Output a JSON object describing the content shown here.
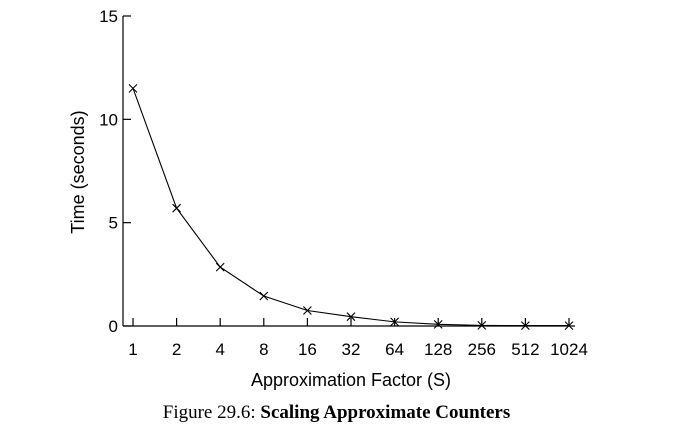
{
  "chart_data": {
    "type": "line",
    "title": "",
    "xlabel": "Approximation Factor (S)",
    "ylabel": "Time (seconds)",
    "x_scale": "log2",
    "ylim": [
      0,
      15
    ],
    "y_ticks": [
      0,
      5,
      10,
      15
    ],
    "categories": [
      "1",
      "2",
      "4",
      "8",
      "16",
      "32",
      "64",
      "128",
      "256",
      "512",
      "1024"
    ],
    "series": [
      {
        "marker": "x",
        "x": [
          1,
          2,
          4,
          8,
          16,
          32,
          64,
          128,
          256,
          512,
          1024
        ],
        "values": [
          11.5,
          5.7,
          2.85,
          1.45,
          0.75,
          0.45,
          0.2,
          0.08,
          0.03,
          0.02,
          0.02
        ]
      }
    ],
    "grid": false,
    "legend": "none"
  },
  "caption": {
    "prefix": "Figure 29.6:",
    "title": "Scaling Approximate Counters"
  }
}
